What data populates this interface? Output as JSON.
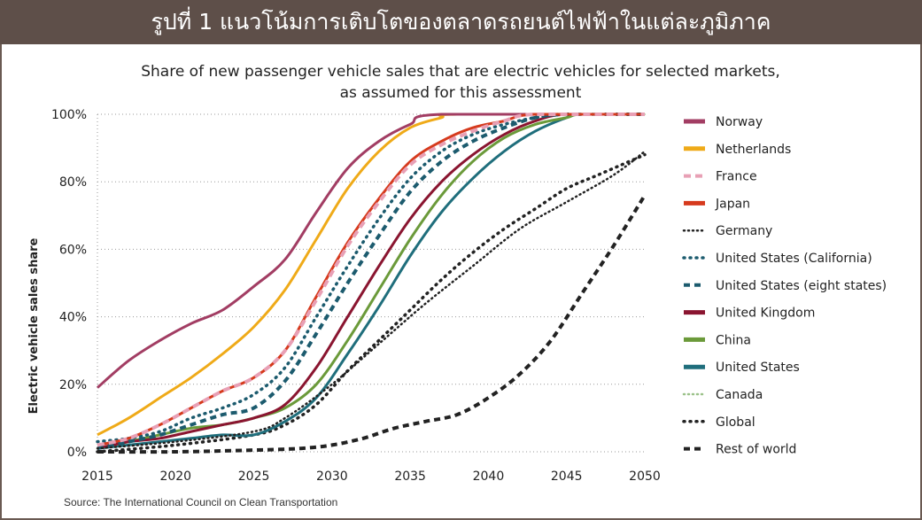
{
  "banner": {
    "title": "รูปที่ 1 แนวโน้มการเติบโตของตลาดรถยนต์ไฟฟ้าในแต่ละภูมิภาค"
  },
  "source": "Source: The International Council on Clean Transportation",
  "chart_data": {
    "type": "line",
    "title_lines": [
      "Share of new passenger vehicle sales that are electric vehicles for selected markets,",
      "as assumed for this assessment"
    ],
    "xlabel": "",
    "ylabel": "Electric vehicle sales share",
    "xlim": [
      2015,
      2050
    ],
    "ylim": [
      0,
      100
    ],
    "x_ticks": [
      "2015",
      "2020",
      "2025",
      "2030",
      "2035",
      "2040",
      "2045",
      "2050"
    ],
    "y_ticks": [
      "0%",
      "20%",
      "40%",
      "60%",
      "80%",
      "100%"
    ],
    "grid": "horizontal dotted",
    "legend_position": "right",
    "series": [
      {
        "name": "Norway",
        "color": "#a23d63",
        "style": "solid",
        "points": [
          [
            2015,
            19
          ],
          [
            2017,
            27
          ],
          [
            2019,
            33
          ],
          [
            2021,
            38
          ],
          [
            2023,
            42
          ],
          [
            2025,
            49
          ],
          [
            2027,
            57
          ],
          [
            2029,
            71
          ],
          [
            2031,
            84
          ],
          [
            2033,
            92
          ],
          [
            2035,
            97
          ],
          [
            2037,
            100
          ],
          [
            2050,
            100
          ]
        ]
      },
      {
        "name": "Netherlands",
        "color": "#efaa18",
        "style": "solid",
        "points": [
          [
            2015,
            5
          ],
          [
            2017,
            10
          ],
          [
            2019,
            16
          ],
          [
            2021,
            22
          ],
          [
            2023,
            29
          ],
          [
            2025,
            37
          ],
          [
            2027,
            48
          ],
          [
            2029,
            63
          ],
          [
            2031,
            78
          ],
          [
            2033,
            89
          ],
          [
            2035,
            96
          ],
          [
            2037,
            99
          ],
          [
            2038,
            100
          ],
          [
            2050,
            100
          ]
        ]
      },
      {
        "name": "France",
        "color": "#e8a0b5",
        "style": "dashed",
        "points": [
          [
            2015,
            2
          ],
          [
            2017,
            4
          ],
          [
            2019,
            8
          ],
          [
            2021,
            13
          ],
          [
            2023,
            18
          ],
          [
            2025,
            22
          ],
          [
            2027,
            30
          ],
          [
            2029,
            45
          ],
          [
            2031,
            61
          ],
          [
            2033,
            74
          ],
          [
            2035,
            85
          ],
          [
            2037,
            91
          ],
          [
            2039,
            95
          ],
          [
            2041,
            98
          ],
          [
            2043,
            100
          ],
          [
            2050,
            100
          ]
        ]
      },
      {
        "name": "Japan",
        "color": "#d63a1d",
        "style": "solid",
        "points": [
          [
            2015,
            2
          ],
          [
            2017,
            4
          ],
          [
            2019,
            8
          ],
          [
            2021,
            13
          ],
          [
            2023,
            18
          ],
          [
            2025,
            22
          ],
          [
            2027,
            30
          ],
          [
            2029,
            46
          ],
          [
            2031,
            62
          ],
          [
            2033,
            75
          ],
          [
            2035,
            86
          ],
          [
            2037,
            92
          ],
          [
            2039,
            96
          ],
          [
            2041,
            98
          ],
          [
            2043,
            100
          ],
          [
            2050,
            100
          ]
        ]
      },
      {
        "name": "Germany",
        "color": "#222222",
        "style": "dotted-fine",
        "points": [
          [
            2015,
            1
          ],
          [
            2020,
            3
          ],
          [
            2025,
            6
          ],
          [
            2027,
            10
          ],
          [
            2030,
            20
          ],
          [
            2033,
            32
          ],
          [
            2036,
            44
          ],
          [
            2039,
            55
          ],
          [
            2042,
            66
          ],
          [
            2045,
            74
          ],
          [
            2048,
            82
          ],
          [
            2050,
            89
          ]
        ]
      },
      {
        "name": "United States (California)",
        "color": "#1c5b6e",
        "style": "dotted-bold",
        "points": [
          [
            2015,
            3
          ],
          [
            2017,
            4
          ],
          [
            2019,
            6
          ],
          [
            2021,
            10
          ],
          [
            2023,
            13
          ],
          [
            2025,
            17
          ],
          [
            2027,
            25
          ],
          [
            2029,
            40
          ],
          [
            2031,
            55
          ],
          [
            2033,
            69
          ],
          [
            2035,
            81
          ],
          [
            2037,
            89
          ],
          [
            2039,
            94
          ],
          [
            2041,
            97
          ],
          [
            2043,
            99
          ],
          [
            2045,
            100
          ],
          [
            2050,
            100
          ]
        ]
      },
      {
        "name": "United States (eight states)",
        "color": "#1c5b6e",
        "style": "dashed-bold",
        "points": [
          [
            2015,
            1
          ],
          [
            2017,
            3
          ],
          [
            2019,
            5
          ],
          [
            2021,
            8
          ],
          [
            2023,
            11
          ],
          [
            2025,
            13
          ],
          [
            2027,
            21
          ],
          [
            2029,
            35
          ],
          [
            2031,
            50
          ],
          [
            2033,
            64
          ],
          [
            2035,
            77
          ],
          [
            2037,
            86
          ],
          [
            2039,
            92
          ],
          [
            2041,
            96
          ],
          [
            2043,
            99
          ],
          [
            2045,
            100
          ],
          [
            2050,
            100
          ]
        ]
      },
      {
        "name": "United Kingdom",
        "color": "#8a1530",
        "style": "solid",
        "points": [
          [
            2015,
            1
          ],
          [
            2017,
            3
          ],
          [
            2019,
            4
          ],
          [
            2021,
            6
          ],
          [
            2023,
            8
          ],
          [
            2025,
            10
          ],
          [
            2027,
            14
          ],
          [
            2029,
            25
          ],
          [
            2031,
            40
          ],
          [
            2033,
            55
          ],
          [
            2035,
            69
          ],
          [
            2037,
            80
          ],
          [
            2039,
            88
          ],
          [
            2041,
            94
          ],
          [
            2043,
            98
          ],
          [
            2045,
            100
          ],
          [
            2050,
            100
          ]
        ]
      },
      {
        "name": "China",
        "color": "#6b9a3a",
        "style": "solid",
        "points": [
          [
            2015,
            1
          ],
          [
            2017,
            3
          ],
          [
            2019,
            5
          ],
          [
            2021,
            7
          ],
          [
            2023,
            8
          ],
          [
            2025,
            10
          ],
          [
            2027,
            13
          ],
          [
            2029,
            20
          ],
          [
            2031,
            33
          ],
          [
            2033,
            48
          ],
          [
            2035,
            63
          ],
          [
            2037,
            76
          ],
          [
            2039,
            86
          ],
          [
            2041,
            93
          ],
          [
            2043,
            97
          ],
          [
            2045,
            99
          ],
          [
            2046,
            100
          ],
          [
            2050,
            100
          ]
        ]
      },
      {
        "name": "United States",
        "color": "#1f6e7c",
        "style": "solid",
        "points": [
          [
            2015,
            1
          ],
          [
            2017,
            2
          ],
          [
            2019,
            3
          ],
          [
            2021,
            4
          ],
          [
            2023,
            5
          ],
          [
            2025,
            5
          ],
          [
            2027,
            9
          ],
          [
            2029,
            16
          ],
          [
            2031,
            29
          ],
          [
            2033,
            43
          ],
          [
            2035,
            58
          ],
          [
            2037,
            71
          ],
          [
            2039,
            81
          ],
          [
            2041,
            89
          ],
          [
            2043,
            95
          ],
          [
            2045,
            99
          ],
          [
            2046,
            100
          ],
          [
            2050,
            100
          ]
        ]
      },
      {
        "name": "Canada",
        "color": "#9cc28a",
        "style": "dotted-fine",
        "points": [
          [
            2015,
            1
          ],
          [
            2017,
            2
          ],
          [
            2019,
            3
          ],
          [
            2021,
            4
          ],
          [
            2023,
            5
          ],
          [
            2025,
            5
          ],
          [
            2027,
            9
          ],
          [
            2029,
            16
          ],
          [
            2031,
            29
          ],
          [
            2033,
            43
          ],
          [
            2035,
            58
          ],
          [
            2037,
            71
          ],
          [
            2039,
            81
          ],
          [
            2041,
            89
          ],
          [
            2043,
            95
          ],
          [
            2045,
            99
          ],
          [
            2046,
            100
          ],
          [
            2050,
            100
          ]
        ]
      },
      {
        "name": "Global",
        "color": "#222222",
        "style": "dotted-bold",
        "points": [
          [
            2015,
            0
          ],
          [
            2020,
            2
          ],
          [
            2025,
            5
          ],
          [
            2027,
            8
          ],
          [
            2029,
            14
          ],
          [
            2031,
            24
          ],
          [
            2033,
            33
          ],
          [
            2035,
            42
          ],
          [
            2037,
            51
          ],
          [
            2039,
            59
          ],
          [
            2041,
            66
          ],
          [
            2043,
            72
          ],
          [
            2045,
            78
          ],
          [
            2047,
            82
          ],
          [
            2049,
            86
          ],
          [
            2050,
            88
          ]
        ]
      },
      {
        "name": "Rest of world",
        "color": "#222222",
        "style": "dashed-bold",
        "points": [
          [
            2015,
            0
          ],
          [
            2020,
            0
          ],
          [
            2025,
            0.5
          ],
          [
            2028,
            1
          ],
          [
            2030,
            2
          ],
          [
            2032,
            4
          ],
          [
            2034,
            7
          ],
          [
            2036,
            9
          ],
          [
            2038,
            11
          ],
          [
            2040,
            16
          ],
          [
            2042,
            23
          ],
          [
            2044,
            33
          ],
          [
            2046,
            47
          ],
          [
            2048,
            61
          ],
          [
            2050,
            76
          ]
        ]
      }
    ]
  }
}
